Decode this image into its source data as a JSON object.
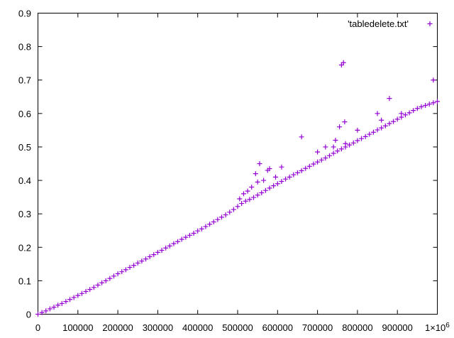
{
  "chart_data": {
    "type": "scatter",
    "title": "",
    "xlabel": "",
    "ylabel": "",
    "xlim": [
      0,
      1000000
    ],
    "ylim": [
      0,
      0.9
    ],
    "x_ticks": [
      0,
      100000,
      200000,
      300000,
      400000,
      500000,
      600000,
      700000,
      800000,
      900000
    ],
    "x_tick_labels": [
      "0",
      "100000",
      "200000",
      "300000",
      "400000",
      "500000",
      "600000",
      "700000",
      "800000",
      "900000"
    ],
    "x_last_tick": 1000000,
    "x_last_tick_label": "1×10",
    "x_last_tick_exponent": "6",
    "y_ticks": [
      0,
      0.1,
      0.2,
      0.3,
      0.4,
      0.5,
      0.6,
      0.7,
      0.8,
      0.9
    ],
    "y_tick_labels": [
      "0",
      "0.1",
      "0.2",
      "0.3",
      "0.4",
      "0.5",
      "0.6",
      "0.7",
      "0.8",
      "0.9"
    ],
    "grid": false,
    "legend_position": "top-right",
    "marker": "plus",
    "series": [
      {
        "name": "'tabledelete.txt'",
        "color": "#9400d3",
        "points": [
          [
            0,
            0.0
          ],
          [
            10000,
            0.005
          ],
          [
            20000,
            0.01
          ],
          [
            30000,
            0.016
          ],
          [
            40000,
            0.021
          ],
          [
            50000,
            0.027
          ],
          [
            60000,
            0.032
          ],
          [
            70000,
            0.038
          ],
          [
            80000,
            0.044
          ],
          [
            90000,
            0.05
          ],
          [
            100000,
            0.056
          ],
          [
            110000,
            0.062
          ],
          [
            120000,
            0.068
          ],
          [
            130000,
            0.074
          ],
          [
            140000,
            0.08
          ],
          [
            150000,
            0.087
          ],
          [
            160000,
            0.094
          ],
          [
            170000,
            0.1
          ],
          [
            180000,
            0.107
          ],
          [
            190000,
            0.114
          ],
          [
            200000,
            0.121
          ],
          [
            210000,
            0.127
          ],
          [
            220000,
            0.133
          ],
          [
            230000,
            0.14
          ],
          [
            240000,
            0.146
          ],
          [
            250000,
            0.153
          ],
          [
            260000,
            0.159
          ],
          [
            270000,
            0.165
          ],
          [
            280000,
            0.172
          ],
          [
            290000,
            0.178
          ],
          [
            300000,
            0.185
          ],
          [
            310000,
            0.191
          ],
          [
            320000,
            0.198
          ],
          [
            330000,
            0.204
          ],
          [
            340000,
            0.211
          ],
          [
            350000,
            0.217
          ],
          [
            360000,
            0.224
          ],
          [
            370000,
            0.23
          ],
          [
            380000,
            0.236
          ],
          [
            390000,
            0.242
          ],
          [
            400000,
            0.249
          ],
          [
            410000,
            0.255
          ],
          [
            420000,
            0.262
          ],
          [
            430000,
            0.269
          ],
          [
            440000,
            0.276
          ],
          [
            450000,
            0.283
          ],
          [
            460000,
            0.29
          ],
          [
            470000,
            0.297
          ],
          [
            480000,
            0.305
          ],
          [
            490000,
            0.313
          ],
          [
            500000,
            0.322
          ],
          [
            510000,
            0.331
          ],
          [
            520000,
            0.338
          ],
          [
            530000,
            0.343
          ],
          [
            540000,
            0.349
          ],
          [
            550000,
            0.356
          ],
          [
            560000,
            0.363
          ],
          [
            570000,
            0.37
          ],
          [
            580000,
            0.377
          ],
          [
            590000,
            0.384
          ],
          [
            600000,
            0.39
          ],
          [
            610000,
            0.397
          ],
          [
            620000,
            0.404
          ],
          [
            630000,
            0.41
          ],
          [
            640000,
            0.417
          ],
          [
            650000,
            0.423
          ],
          [
            660000,
            0.429
          ],
          [
            670000,
            0.436
          ],
          [
            680000,
            0.442
          ],
          [
            690000,
            0.449
          ],
          [
            700000,
            0.455
          ],
          [
            710000,
            0.461
          ],
          [
            720000,
            0.467
          ],
          [
            730000,
            0.474
          ],
          [
            740000,
            0.481
          ],
          [
            750000,
            0.488
          ],
          [
            760000,
            0.494
          ],
          [
            770000,
            0.5
          ],
          [
            780000,
            0.506
          ],
          [
            790000,
            0.512
          ],
          [
            800000,
            0.519
          ],
          [
            810000,
            0.525
          ],
          [
            820000,
            0.531
          ],
          [
            830000,
            0.538
          ],
          [
            840000,
            0.544
          ],
          [
            850000,
            0.551
          ],
          [
            860000,
            0.557
          ],
          [
            870000,
            0.563
          ],
          [
            880000,
            0.57
          ],
          [
            890000,
            0.576
          ],
          [
            900000,
            0.583
          ],
          [
            910000,
            0.589
          ],
          [
            920000,
            0.596
          ],
          [
            930000,
            0.602
          ],
          [
            940000,
            0.609
          ],
          [
            950000,
            0.615
          ],
          [
            960000,
            0.62
          ],
          [
            970000,
            0.624
          ],
          [
            980000,
            0.628
          ],
          [
            990000,
            0.632
          ],
          [
            1000000,
            0.636
          ],
          [
            505000,
            0.345
          ],
          [
            515000,
            0.36
          ],
          [
            525000,
            0.368
          ],
          [
            535000,
            0.38
          ],
          [
            545000,
            0.42
          ],
          [
            550000,
            0.395
          ],
          [
            555000,
            0.45
          ],
          [
            565000,
            0.4
          ],
          [
            575000,
            0.43
          ],
          [
            580000,
            0.435
          ],
          [
            595000,
            0.41
          ],
          [
            610000,
            0.44
          ],
          [
            660000,
            0.53
          ],
          [
            700000,
            0.485
          ],
          [
            720000,
            0.5
          ],
          [
            740000,
            0.5
          ],
          [
            745000,
            0.52
          ],
          [
            755000,
            0.56
          ],
          [
            760000,
            0.745
          ],
          [
            765000,
            0.752
          ],
          [
            768000,
            0.575
          ],
          [
            770000,
            0.51
          ],
          [
            800000,
            0.55
          ],
          [
            850000,
            0.6
          ],
          [
            860000,
            0.58
          ],
          [
            880000,
            0.645
          ],
          [
            910000,
            0.6
          ],
          [
            990000,
            0.7
          ]
        ]
      }
    ]
  }
}
